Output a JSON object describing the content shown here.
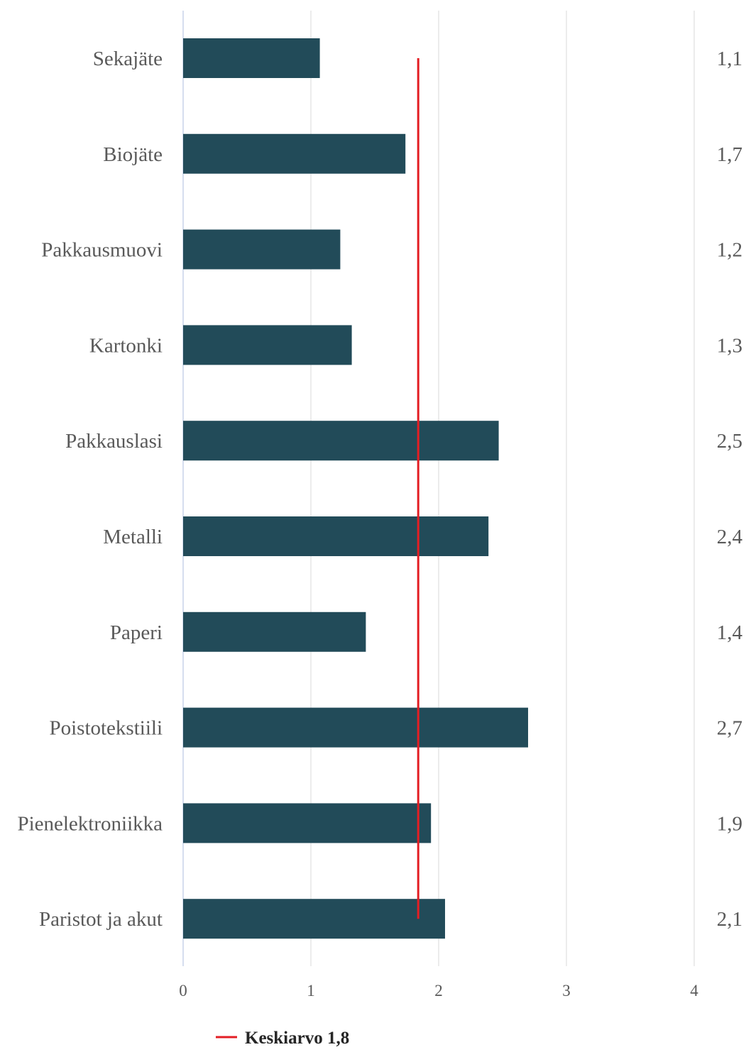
{
  "chart_data": {
    "type": "bar",
    "orientation": "horizontal",
    "categories": [
      "Sekajäte",
      "Biojäte",
      "Pakkausmuovi",
      "Kartonki",
      "Pakkauslasi",
      "Metalli",
      "Paperi",
      "Poistotekstiili",
      "Pienelektroniikka",
      "Paristot ja akut"
    ],
    "values": [
      1.07,
      1.74,
      1.23,
      1.32,
      2.47,
      2.39,
      1.43,
      2.7,
      1.94,
      2.05
    ],
    "value_labels": [
      "1,1",
      "1,7",
      "1,2",
      "1,3",
      "2,5",
      "2,4",
      "1,4",
      "2,7",
      "1,9",
      "2,1"
    ],
    "xlim": [
      0,
      4
    ],
    "x_ticks": [
      0,
      1,
      2,
      3,
      4
    ],
    "x_tick_labels": [
      "0",
      "1",
      "2",
      "3",
      "4"
    ],
    "grid": true,
    "reference_line": {
      "value": 1.84,
      "label": "Keskiarvo 1,8",
      "color": "#e31e24"
    },
    "bar_color": "#224b59",
    "grid_color": "#d9d9d9",
    "axis_color": "#c9d3ea",
    "legend_position": "bottom-left",
    "title": "",
    "xlabel": "",
    "ylabel": ""
  }
}
